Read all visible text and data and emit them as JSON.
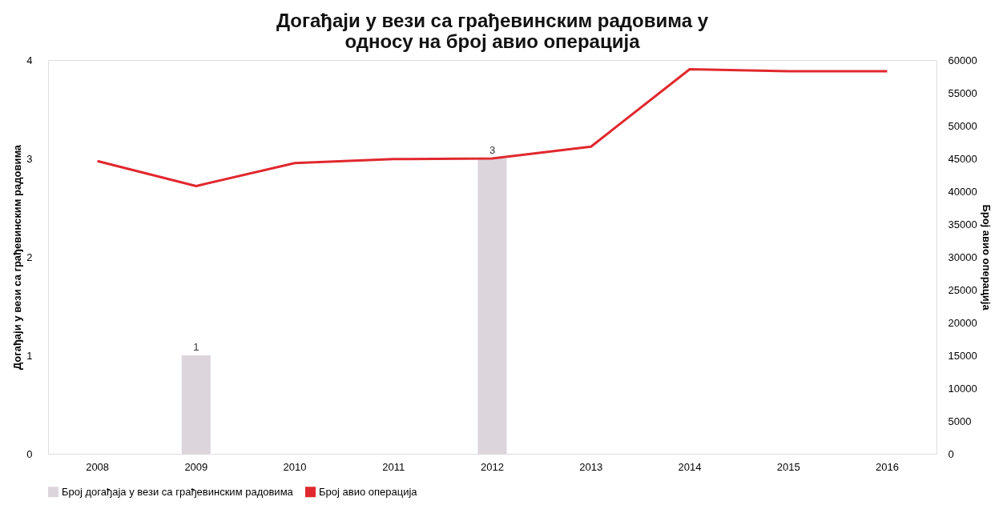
{
  "chart_data": {
    "type": "bar",
    "title": "Догађаји у вези са грађевинским радовима у односу на број авио операција",
    "categories": [
      "2008",
      "2009",
      "2010",
      "2011",
      "2012",
      "2013",
      "2014",
      "2015",
      "2016"
    ],
    "series": [
      {
        "name": "Број догађаја у вези са грађевинским радовима",
        "color": "#dcd5dc",
        "values": [
          null,
          1,
          null,
          null,
          3,
          null,
          null,
          null,
          null
        ],
        "value_labels": [
          null,
          "1",
          null,
          null,
          "3",
          null,
          null,
          null,
          null
        ]
      },
      {
        "name": "Број авио операција",
        "type": "line",
        "axis": "y2",
        "color": "#e0282e",
        "values": [
          44600,
          40800,
          44300,
          44900,
          45000,
          46800,
          58600,
          58300,
          58300
        ]
      }
    ],
    "ylabel": "Догађаји у вези са грађевинским радовима",
    "y2label": "Број авио операција",
    "ylim": [
      0,
      4
    ],
    "yticks": [
      0,
      1,
      2,
      3,
      4
    ],
    "y2lim": [
      0,
      60000
    ],
    "y2ticks": [
      0,
      5000,
      10000,
      15000,
      20000,
      25000,
      30000,
      35000,
      40000,
      45000,
      50000,
      55000,
      60000
    ],
    "grid": false,
    "legend": "bottom",
    "marker": "none",
    "line_style": "solid"
  }
}
